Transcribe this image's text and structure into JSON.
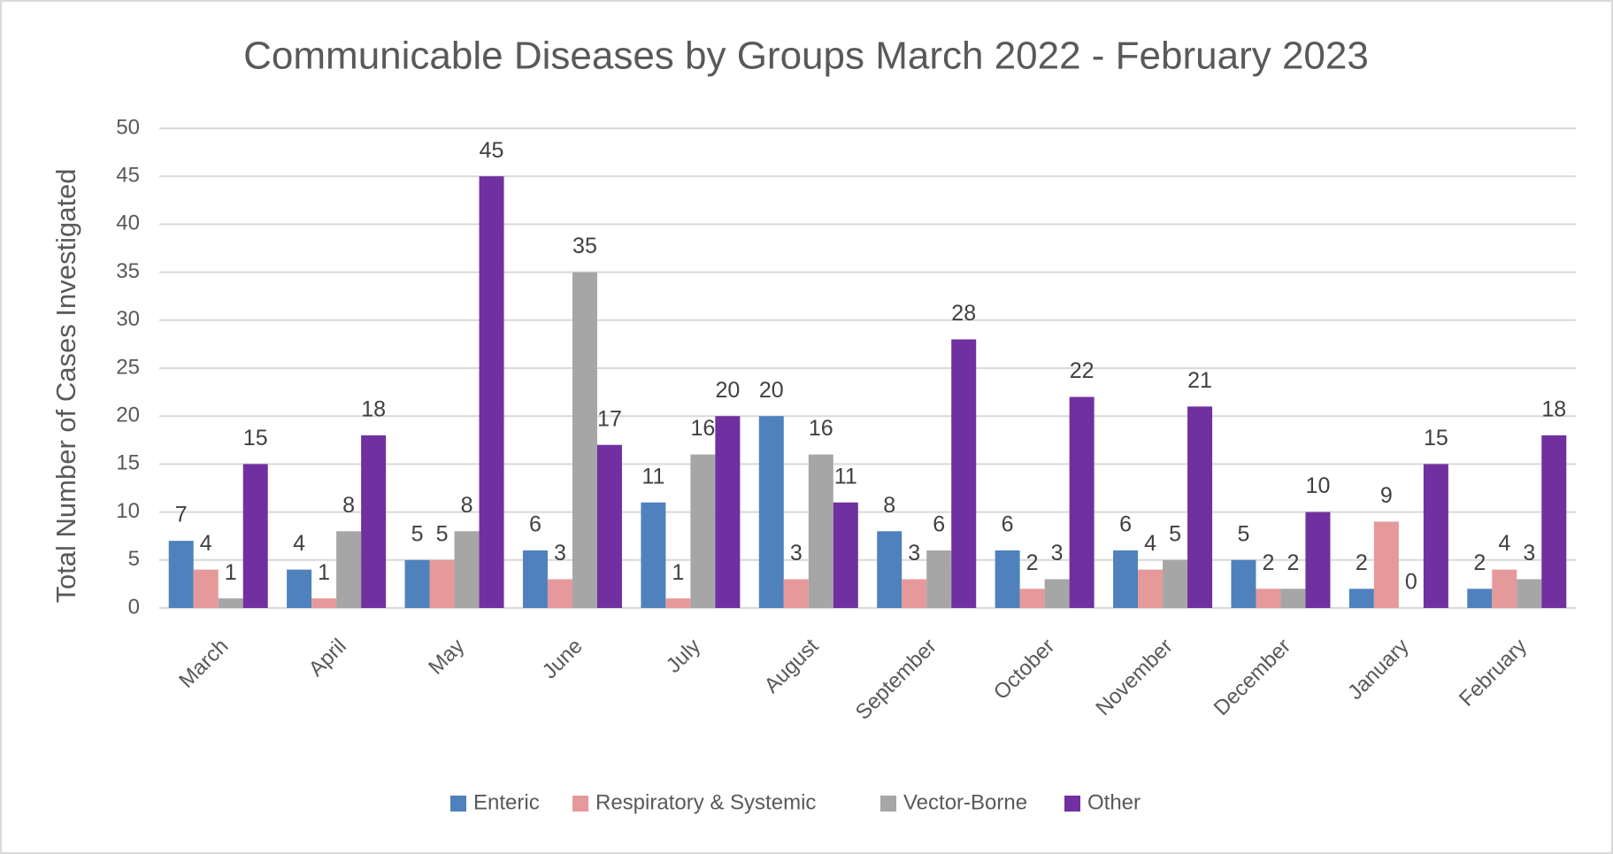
{
  "chart_data": {
    "type": "bar",
    "title": "Communicable Diseases by Groups March 2022 - February 2023",
    "y_label": "Total Number of Cases Investigated",
    "categories": [
      "March",
      "April",
      "May",
      "June",
      "July",
      "August",
      "September",
      "October",
      "November",
      "December",
      "January",
      "February"
    ],
    "series": [
      {
        "name": "Enteric",
        "color": "#4f81bd",
        "values": [
          7,
          4,
          5,
          6,
          11,
          20,
          8,
          6,
          6,
          5,
          2,
          2
        ]
      },
      {
        "name": "Respiratory & Systemic",
        "color": "#e6999a",
        "values": [
          4,
          1,
          5,
          3,
          1,
          3,
          3,
          2,
          4,
          2,
          9,
          4
        ]
      },
      {
        "name": "Vector-Borne",
        "color": "#a6a6a6",
        "values": [
          1,
          8,
          8,
          35,
          16,
          16,
          6,
          3,
          5,
          2,
          0,
          3
        ]
      },
      {
        "name": "Other",
        "color": "#7030a0",
        "values": [
          15,
          18,
          45,
          17,
          20,
          11,
          28,
          22,
          21,
          10,
          15,
          18
        ]
      }
    ],
    "ylim": [
      0,
      50
    ],
    "yticks": [
      0,
      5,
      10,
      15,
      20,
      25,
      30,
      35,
      40,
      45,
      50
    ],
    "grid": true,
    "legend": "bottom"
  }
}
